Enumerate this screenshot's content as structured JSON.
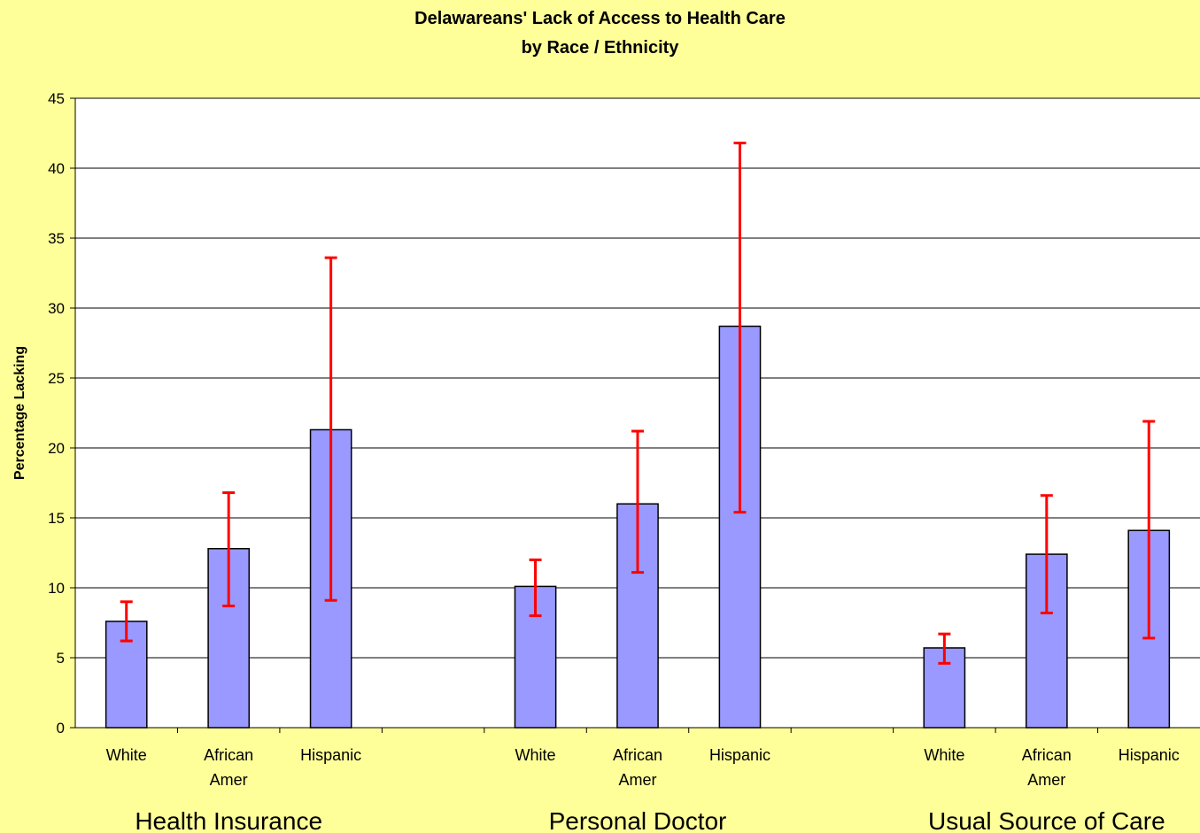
{
  "chart_data": {
    "type": "bar",
    "title": [
      "Delawareans' Lack of Access to Health Care",
      "by Race / Ethnicity"
    ],
    "ylabel": "Percentage Lacking",
    "xlabel": "",
    "ylim": [
      0,
      45
    ],
    "yticks": [
      0,
      5,
      10,
      15,
      20,
      25,
      30,
      35,
      40,
      45
    ],
    "grid": true,
    "legend": "none",
    "colors": {
      "background": "#ffff99",
      "plot_area": "#ffffff",
      "bar": "#9999ff",
      "error_bar": "#ff0000"
    },
    "groups": [
      {
        "name": "Health Insurance",
        "categories": [
          [
            "White"
          ],
          [
            "African",
            "Amer"
          ],
          [
            "Hispanic"
          ]
        ],
        "values": [
          7.6,
          12.8,
          21.3
        ],
        "error_low": [
          6.2,
          8.7,
          9.1
        ],
        "error_high": [
          9.0,
          16.8,
          33.6
        ]
      },
      {
        "name": "Personal Doctor",
        "categories": [
          [
            "White"
          ],
          [
            "African",
            "Amer"
          ],
          [
            "Hispanic"
          ]
        ],
        "values": [
          10.1,
          16.0,
          28.7
        ],
        "error_low": [
          8.0,
          11.1,
          15.4
        ],
        "error_high": [
          12.0,
          21.2,
          41.8
        ]
      },
      {
        "name": "Usual Source of Care",
        "categories": [
          [
            "White"
          ],
          [
            "African",
            "Amer"
          ],
          [
            "Hispanic"
          ]
        ],
        "values": [
          5.7,
          12.4,
          14.1
        ],
        "error_low": [
          4.6,
          8.2,
          6.4
        ],
        "error_high": [
          6.7,
          16.6,
          21.9
        ]
      }
    ]
  }
}
